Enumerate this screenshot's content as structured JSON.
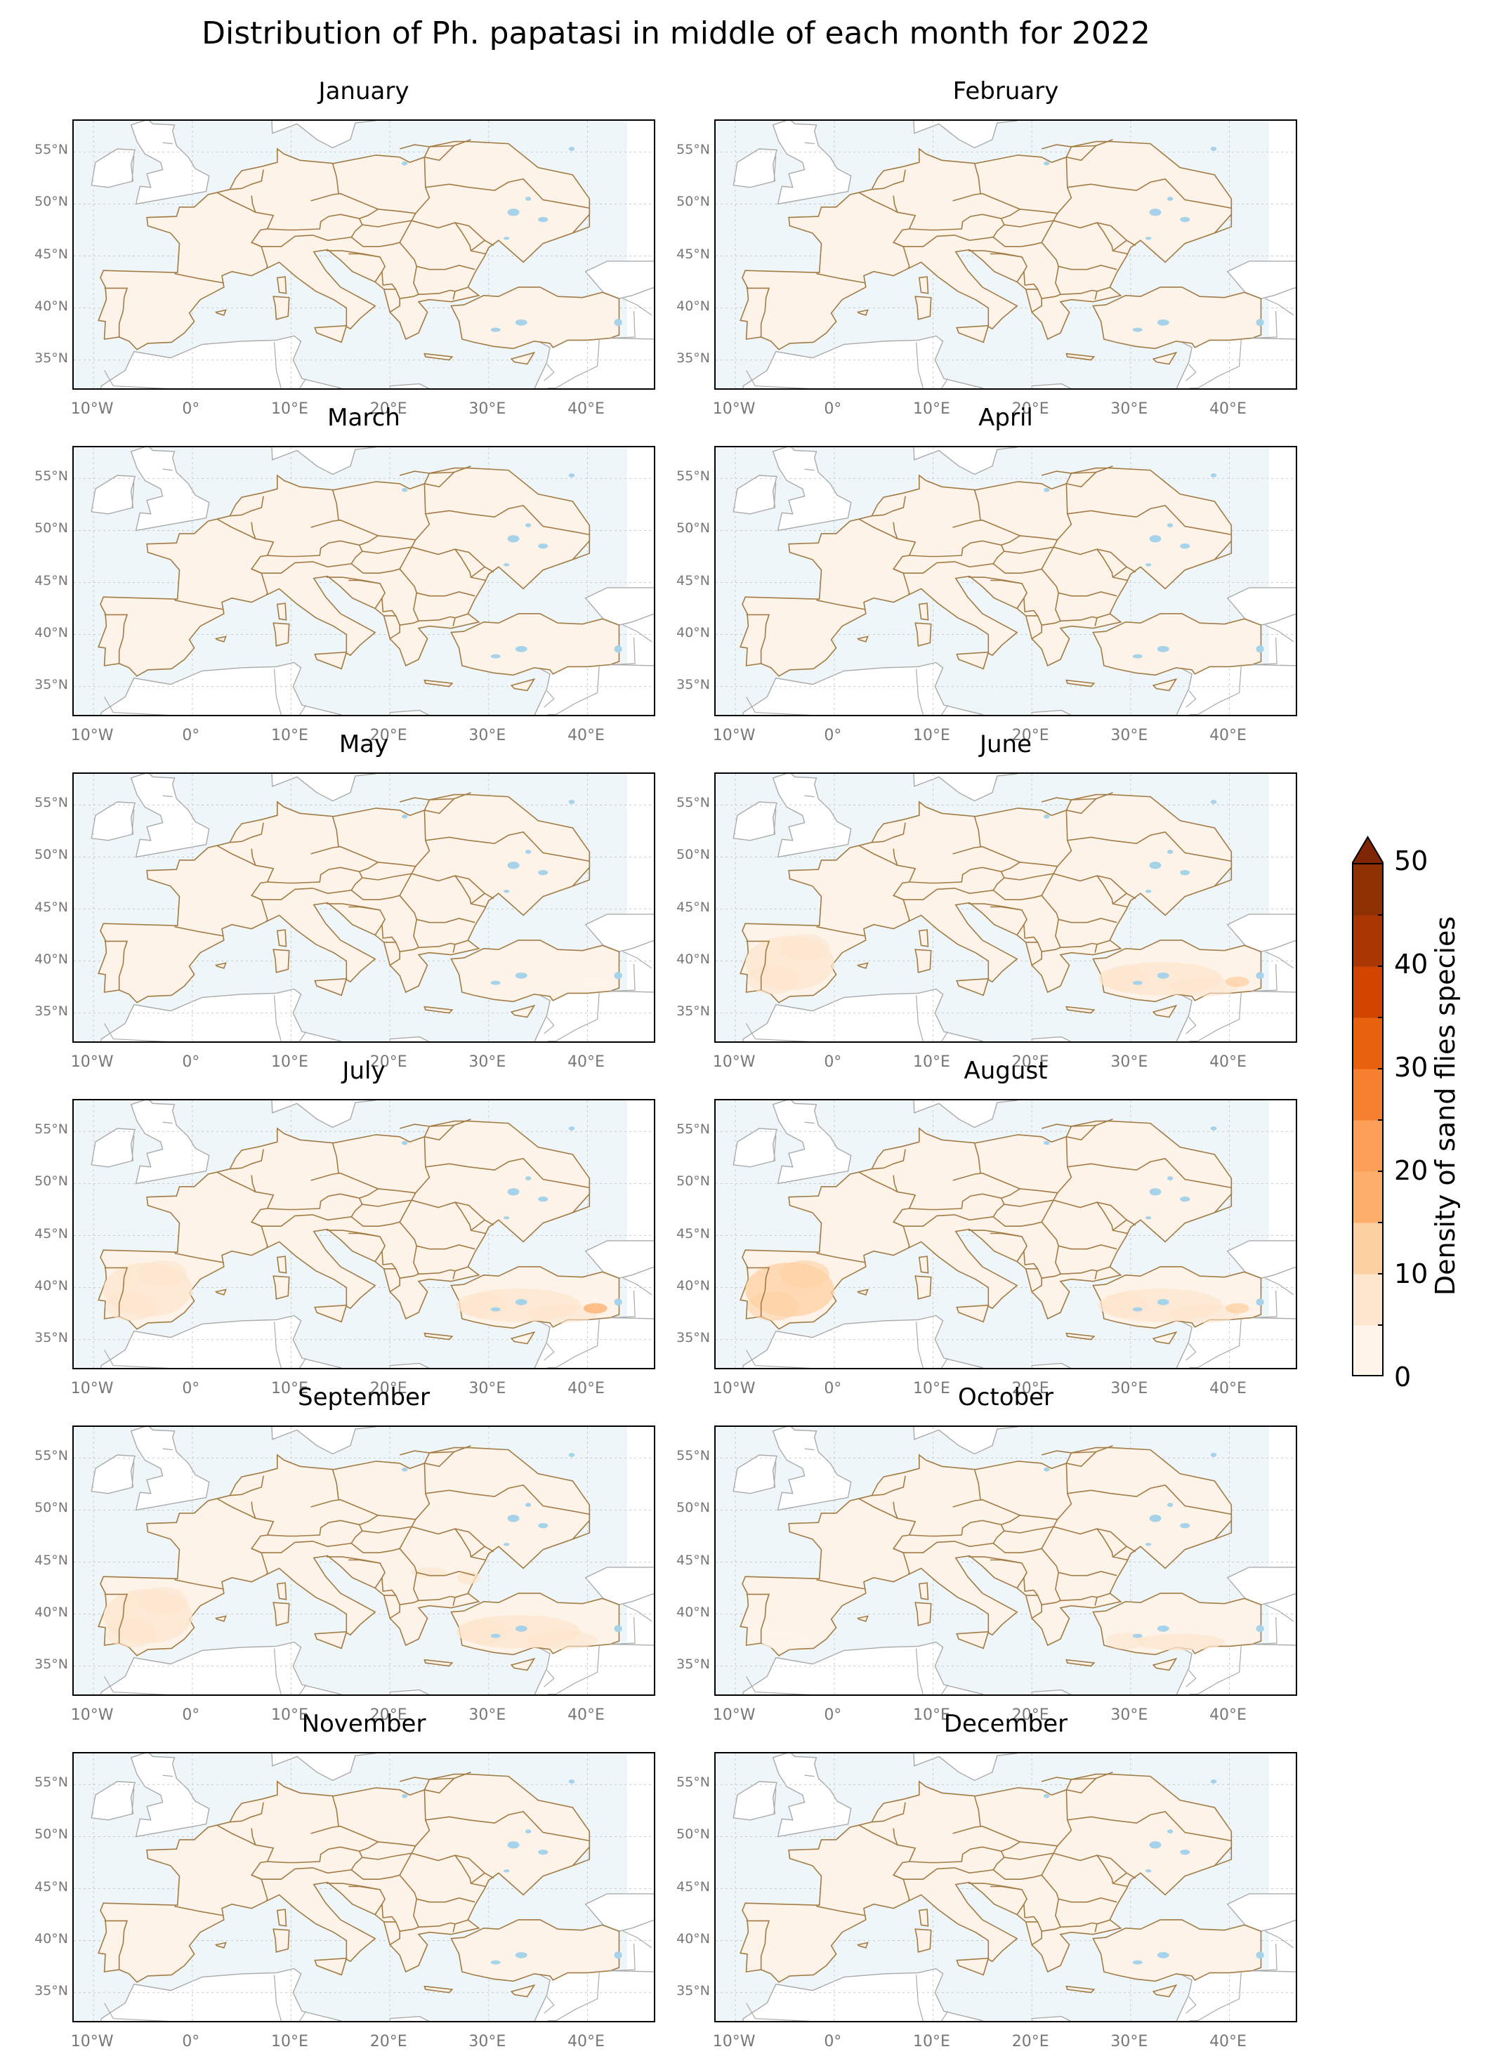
{
  "title": "Distribution of Ph. papatasi in middle of each month for 2022",
  "y_ticks": [
    "55°N",
    "50°N",
    "45°N",
    "40°N",
    "35°N"
  ],
  "x_ticks": [
    "10°W",
    "0°",
    "10°E",
    "20°E",
    "30°E",
    "40°E"
  ],
  "colors": {
    "sea": "#eef6f9",
    "land": "#fdf3e8",
    "border": "#a27b45",
    "outside_coast": "#aaaaaa",
    "lakes": "#a6d3ea"
  },
  "panels": [
    {
      "month": "January",
      "hotspots": []
    },
    {
      "month": "February",
      "hotspots": []
    },
    {
      "month": "March",
      "hotspots": []
    },
    {
      "month": "April",
      "hotspots": []
    },
    {
      "month": "May",
      "hotspots": [
        {
          "region": "southeast Turkey",
          "level": 4
        }
      ]
    },
    {
      "month": "June",
      "hotspots": [
        {
          "region": "Iberia",
          "level": 5
        },
        {
          "region": "Turkey",
          "level": 6
        },
        {
          "region": "southeast Turkey",
          "level": 14
        }
      ]
    },
    {
      "month": "July",
      "hotspots": [
        {
          "region": "Iberia",
          "level": 8
        },
        {
          "region": "Turkey",
          "level": 8
        },
        {
          "region": "southeast Turkey",
          "level": 16
        }
      ]
    },
    {
      "month": "August",
      "hotspots": [
        {
          "region": "Iberia",
          "level": 10
        },
        {
          "region": "Turkey",
          "level": 9
        },
        {
          "region": "southeast Turkey",
          "level": 14
        }
      ]
    },
    {
      "month": "September",
      "hotspots": [
        {
          "region": "Iberia",
          "level": 8
        },
        {
          "region": "Turkey",
          "level": 8
        },
        {
          "region": "Black Sea coast",
          "level": 5
        }
      ]
    },
    {
      "month": "October",
      "hotspots": [
        {
          "region": "southern Iberia",
          "level": 4
        },
        {
          "region": "southern Turkey",
          "level": 5
        }
      ]
    },
    {
      "month": "November",
      "hotspots": []
    },
    {
      "month": "December",
      "hotspots": []
    }
  ],
  "colorbar": {
    "title": "Density of sand flies species",
    "labels": [
      "50",
      "40",
      "30",
      "20",
      "10",
      "0"
    ],
    "min": 0,
    "max": 50,
    "extend": "max",
    "bins": [
      {
        "from": 0,
        "to": 5,
        "color": "#fff5eb"
      },
      {
        "from": 5,
        "to": 10,
        "color": "#fee6ce"
      },
      {
        "from": 10,
        "to": 15,
        "color": "#fdd0a2"
      },
      {
        "from": 15,
        "to": 20,
        "color": "#fdae6b"
      },
      {
        "from": 20,
        "to": 25,
        "color": "#fd9f58"
      },
      {
        "from": 25,
        "to": 30,
        "color": "#f6802f"
      },
      {
        "from": 30,
        "to": 35,
        "color": "#e8620e"
      },
      {
        "from": 35,
        "to": 40,
        "color": "#d14501"
      },
      {
        "from": 40,
        "to": 45,
        "color": "#a93603"
      },
      {
        "from": 45,
        "to": 50,
        "color": "#8f3003"
      }
    ],
    "extend_color": "#7f2704"
  }
}
